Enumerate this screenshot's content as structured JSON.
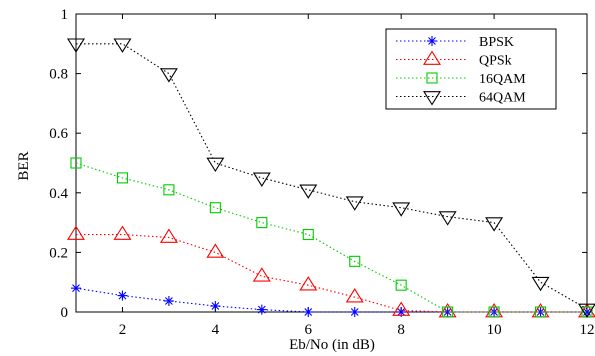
{
  "chart_data": {
    "type": "line",
    "title": "",
    "xlabel": "Eb/No (in dB)",
    "ylabel": "BER",
    "xlim": [
      1,
      12
    ],
    "ylim": [
      0,
      1
    ],
    "xticks": [
      2,
      4,
      6,
      8,
      10,
      12
    ],
    "yticks": [
      0,
      0.2,
      0.4,
      0.6,
      0.8,
      1
    ],
    "ytick_labels": [
      "0",
      "0.2",
      "0.4",
      "0.6",
      "0.8",
      "1"
    ],
    "grid": false,
    "legend_position": "top-right",
    "x": [
      1,
      2,
      3,
      4,
      5,
      6,
      7,
      8,
      9,
      10,
      11,
      12
    ],
    "series": [
      {
        "name": "BPSK",
        "color": "#0000ff",
        "marker": "asterisk",
        "line_style": "dotted",
        "values": [
          0.08,
          0.055,
          0.037,
          0.02,
          0.008,
          0.0,
          0.0,
          0.0,
          0.0,
          0.0,
          0.0,
          0.0
        ]
      },
      {
        "name": "QPSk",
        "color": "#ff0000",
        "marker": "triangle-up",
        "line_style": "dotted",
        "values": [
          0.26,
          0.26,
          0.25,
          0.2,
          0.12,
          0.09,
          0.05,
          0.005,
          0.0,
          0.0,
          0.0,
          0.0
        ]
      },
      {
        "name": "16QAM",
        "color": "#00cc00",
        "marker": "square",
        "line_style": "dotted",
        "values": [
          0.5,
          0.45,
          0.41,
          0.35,
          0.3,
          0.26,
          0.17,
          0.09,
          0.0,
          0.0,
          0.0,
          0.0
        ]
      },
      {
        "name": "64QAM",
        "color": "#000000",
        "marker": "triangle-down",
        "line_style": "dotted",
        "values": [
          0.9,
          0.9,
          0.8,
          0.5,
          0.45,
          0.41,
          0.37,
          0.35,
          0.32,
          0.3,
          0.1,
          0.01
        ]
      }
    ]
  }
}
